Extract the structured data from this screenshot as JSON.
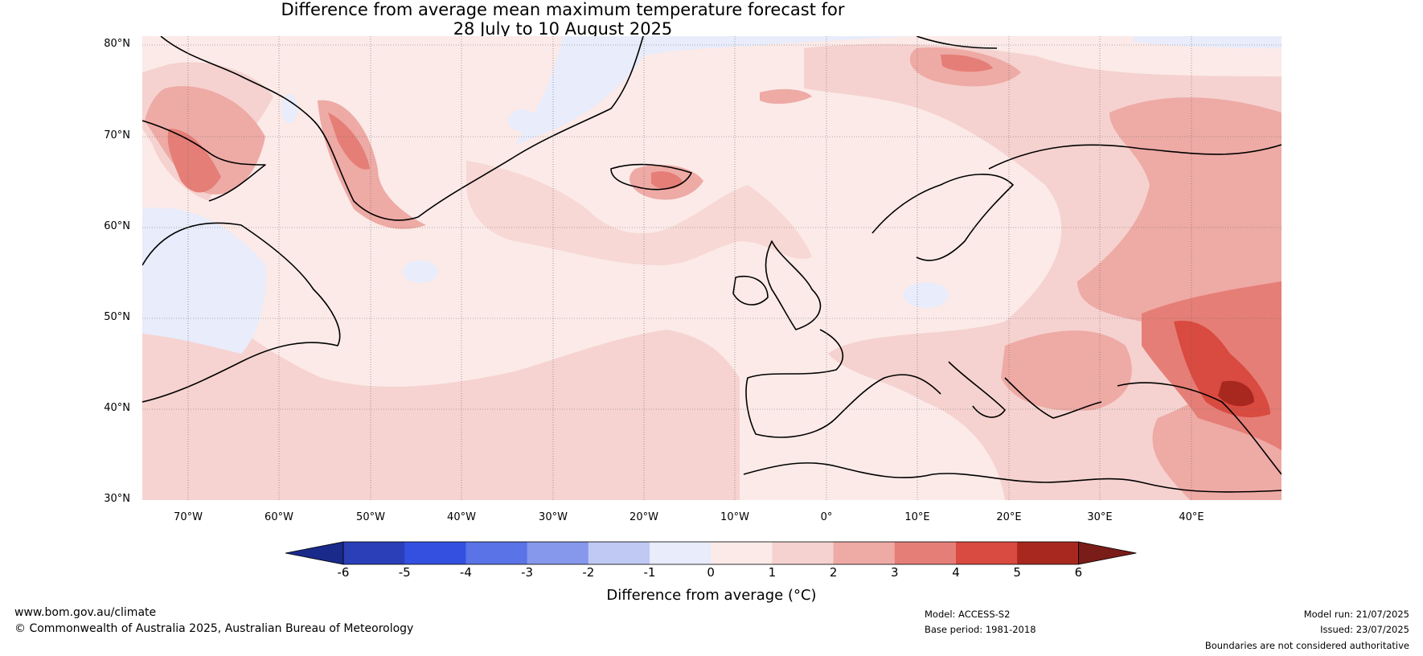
{
  "title": {
    "line1": "Difference from average mean maximum temperature forecast for",
    "line2": "28 July to 10 August 2025"
  },
  "lat_labels": [
    "80°N",
    "70°N",
    "60°N",
    "50°N",
    "40°N",
    "30°N"
  ],
  "lon_labels": [
    "70°W",
    "60°W",
    "50°W",
    "40°W",
    "30°W",
    "20°W",
    "10°W",
    "0°",
    "10°E",
    "20°E",
    "30°E",
    "40°E"
  ],
  "colorbar": {
    "title": "Difference from average (°C)",
    "ticks": [
      "-6",
      "-5",
      "-4",
      "-3",
      "-2",
      "-1",
      "0",
      "1",
      "2",
      "3",
      "4",
      "5",
      "6"
    ],
    "colors": [
      "#1a2a8a",
      "#2a3fb8",
      "#3350e0",
      "#5a73e6",
      "#8598ec",
      "#c0c9f4",
      "#e8ecfb",
      "#fbeae8",
      "#f5d2cf",
      "#eeaaa5",
      "#e57e77",
      "#d94a40",
      "#a82820",
      "#7a1c18"
    ]
  },
  "footer": {
    "url": "www.bom.gov.au/climate",
    "copyright": "© Commonwealth of Australia 2025, Australian Bureau of Meteorology",
    "model": "Model: ACCESS-S2",
    "base_period": "Base period: 1981-2018",
    "model_run": "Model run: 21/07/2025",
    "issued": "Issued: 23/07/2025",
    "disclaimer": "Boundaries are not considered authoritative"
  },
  "map_extent": {
    "lon": [
      -75,
      50
    ],
    "lat": [
      30,
      81
    ]
  }
}
